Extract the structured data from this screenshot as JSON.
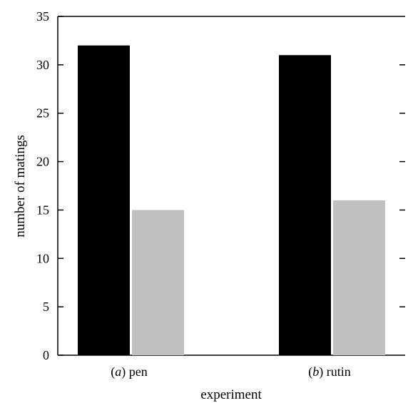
{
  "chart_data": {
    "type": "bar",
    "categories": [
      {
        "prefix": "(",
        "letter": "a",
        "suffix": ") pen"
      },
      {
        "prefix": "(",
        "letter": "b",
        "suffix": ") rutin"
      }
    ],
    "series": [
      {
        "values": [
          32,
          31
        ],
        "color": "#000000"
      },
      {
        "values": [
          15,
          16
        ],
        "color": "#c0c0c0"
      }
    ],
    "xlabel": "experiment",
    "ylabel": "number of matings",
    "ylim": [
      0,
      35
    ],
    "yticks": [
      0,
      5,
      10,
      15,
      20,
      25,
      30,
      35
    ],
    "grid": false,
    "legend": "none"
  }
}
